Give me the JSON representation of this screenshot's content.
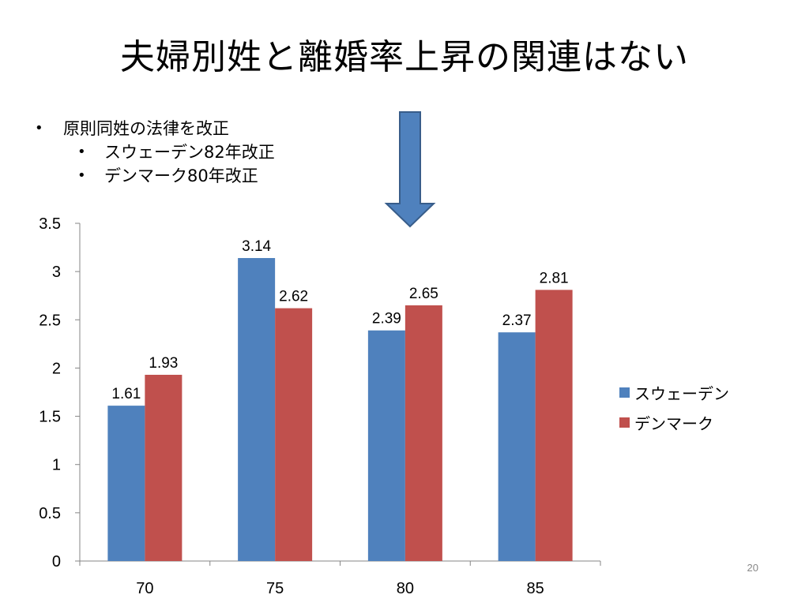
{
  "slide": {
    "title": "夫婦別姓と離婚率上昇の関連はない",
    "bullets": [
      {
        "text": "原則同姓の法律を改正"
      },
      {
        "text": "スウェーデン82年改正"
      },
      {
        "text": "デンマーク80年改正"
      }
    ],
    "bullet_glyph": "•",
    "page_number": "20",
    "arrow_icon": "down-arrow-icon",
    "arrow_color": "#4F81BD"
  },
  "chart_data": {
    "type": "bar",
    "title": "",
    "xlabel": "",
    "ylabel": "",
    "categories": [
      "70",
      "75",
      "80",
      "85"
    ],
    "series": [
      {
        "name": "スウェーデン",
        "color": "#4F81BD",
        "values": [
          1.61,
          3.14,
          2.39,
          2.37
        ]
      },
      {
        "name": "デンマーク",
        "color": "#C0504D",
        "values": [
          1.93,
          2.62,
          2.65,
          2.81
        ]
      }
    ],
    "ylim": [
      0,
      3.5
    ],
    "yticks": [
      "0",
      "0.5",
      "1",
      "1.5",
      "2",
      "2.5",
      "3",
      "3.5"
    ],
    "data_labels": [
      [
        "1.61",
        "3.14",
        "2.39",
        "2.37"
      ],
      [
        "1.93",
        "2.62",
        "2.65",
        "2.81"
      ]
    ],
    "grid": false,
    "legend_position": "right"
  }
}
